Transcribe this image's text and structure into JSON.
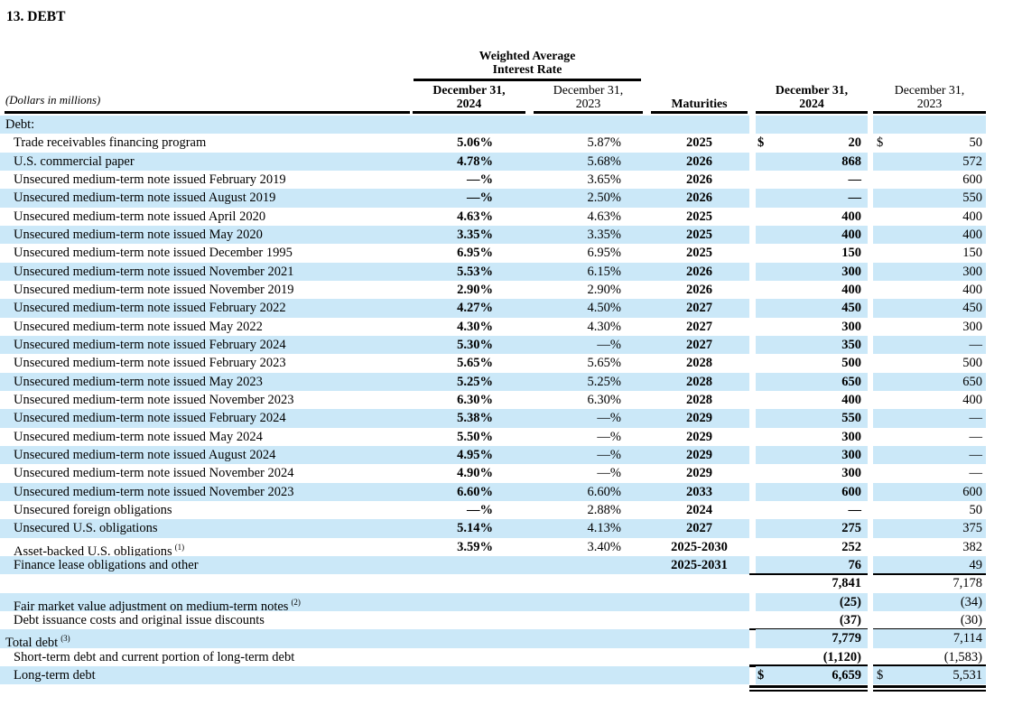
{
  "title": "13. DEBT",
  "colors": {
    "row_highlight": "#cbe8f8",
    "text": "#000000",
    "rule": "#000000"
  },
  "table": {
    "units_note": "(Dollars in millions)",
    "rate_group_header": {
      "line1": "Weighted Average",
      "line2": "Interest Rate"
    },
    "headers": {
      "rate_2024": {
        "line1": "December 31,",
        "line2": "2024"
      },
      "rate_2023": {
        "line1": "December 31,",
        "line2": "2023"
      },
      "maturities": "Maturities",
      "amount_2024": {
        "line1": "December 31,",
        "line2": "2024"
      },
      "amount_2023": {
        "line1": "December 31,",
        "line2": "2023"
      }
    },
    "rows": [
      {
        "label": "Debt:",
        "sup": "",
        "indent": false,
        "shaded": true,
        "rate_2024": "",
        "rate_2023": "",
        "maturities": "",
        "currency_2024": "",
        "amount_2024": "",
        "currency_2023": "",
        "amount_2023": "",
        "rule_below": "none"
      },
      {
        "label": "Trade receivables financing program",
        "sup": "",
        "indent": true,
        "shaded": false,
        "rate_2024": "5.06%",
        "rate_2023": "5.87%",
        "maturities": "2025",
        "currency_2024": "$",
        "amount_2024": "20",
        "currency_2023": "$",
        "amount_2023": "50",
        "rule_below": "none"
      },
      {
        "label": "U.S. commercial paper",
        "sup": "",
        "indent": true,
        "shaded": true,
        "rate_2024": "4.78%",
        "rate_2023": "5.68%",
        "maturities": "2026",
        "currency_2024": "",
        "amount_2024": "868",
        "currency_2023": "",
        "amount_2023": "572",
        "rule_below": "none"
      },
      {
        "label": "Unsecured medium-term note issued February 2019",
        "sup": "",
        "indent": true,
        "shaded": false,
        "rate_2024": "—%",
        "rate_2023": "3.65%",
        "maturities": "2026",
        "currency_2024": "",
        "amount_2024": "—",
        "currency_2023": "",
        "amount_2023": "600",
        "rule_below": "none"
      },
      {
        "label": "Unsecured medium-term note issued August 2019",
        "sup": "",
        "indent": true,
        "shaded": true,
        "rate_2024": "—%",
        "rate_2023": "2.50%",
        "maturities": "2026",
        "currency_2024": "",
        "amount_2024": "—",
        "currency_2023": "",
        "amount_2023": "550",
        "rule_below": "none"
      },
      {
        "label": "Unsecured medium-term note issued April 2020",
        "sup": "",
        "indent": true,
        "shaded": false,
        "rate_2024": "4.63%",
        "rate_2023": "4.63%",
        "maturities": "2025",
        "currency_2024": "",
        "amount_2024": "400",
        "currency_2023": "",
        "amount_2023": "400",
        "rule_below": "none"
      },
      {
        "label": "Unsecured medium-term note issued May 2020",
        "sup": "",
        "indent": true,
        "shaded": true,
        "rate_2024": "3.35%",
        "rate_2023": "3.35%",
        "maturities": "2025",
        "currency_2024": "",
        "amount_2024": "400",
        "currency_2023": "",
        "amount_2023": "400",
        "rule_below": "none"
      },
      {
        "label": "Unsecured medium-term note issued December 1995",
        "sup": "",
        "indent": true,
        "shaded": false,
        "rate_2024": "6.95%",
        "rate_2023": "6.95%",
        "maturities": "2025",
        "currency_2024": "",
        "amount_2024": "150",
        "currency_2023": "",
        "amount_2023": "150",
        "rule_below": "none"
      },
      {
        "label": "Unsecured medium-term note issued November 2021",
        "sup": "",
        "indent": true,
        "shaded": true,
        "rate_2024": "5.53%",
        "rate_2023": "6.15%",
        "maturities": "2026",
        "currency_2024": "",
        "amount_2024": "300",
        "currency_2023": "",
        "amount_2023": "300",
        "rule_below": "none"
      },
      {
        "label": "Unsecured medium-term note issued November 2019",
        "sup": "",
        "indent": true,
        "shaded": false,
        "rate_2024": "2.90%",
        "rate_2023": "2.90%",
        "maturities": "2026",
        "currency_2024": "",
        "amount_2024": "400",
        "currency_2023": "",
        "amount_2023": "400",
        "rule_below": "none"
      },
      {
        "label": "Unsecured medium-term note issued February 2022",
        "sup": "",
        "indent": true,
        "shaded": true,
        "rate_2024": "4.27%",
        "rate_2023": "4.50%",
        "maturities": "2027",
        "currency_2024": "",
        "amount_2024": "450",
        "currency_2023": "",
        "amount_2023": "450",
        "rule_below": "none"
      },
      {
        "label": "Unsecured medium-term note issued May 2022",
        "sup": "",
        "indent": true,
        "shaded": false,
        "rate_2024": "4.30%",
        "rate_2023": "4.30%",
        "maturities": "2027",
        "currency_2024": "",
        "amount_2024": "300",
        "currency_2023": "",
        "amount_2023": "300",
        "rule_below": "none"
      },
      {
        "label": "Unsecured medium-term note issued February 2024",
        "sup": "",
        "indent": true,
        "shaded": true,
        "rate_2024": "5.30%",
        "rate_2023": "—%",
        "maturities": "2027",
        "currency_2024": "",
        "amount_2024": "350",
        "currency_2023": "",
        "amount_2023": "—",
        "rule_below": "none"
      },
      {
        "label": "Unsecured medium-term note issued February 2023",
        "sup": "",
        "indent": true,
        "shaded": false,
        "rate_2024": "5.65%",
        "rate_2023": "5.65%",
        "maturities": "2028",
        "currency_2024": "",
        "amount_2024": "500",
        "currency_2023": "",
        "amount_2023": "500",
        "rule_below": "none"
      },
      {
        "label": "Unsecured medium-term note issued May 2023",
        "sup": "",
        "indent": true,
        "shaded": true,
        "rate_2024": "5.25%",
        "rate_2023": "5.25%",
        "maturities": "2028",
        "currency_2024": "",
        "amount_2024": "650",
        "currency_2023": "",
        "amount_2023": "650",
        "rule_below": "none"
      },
      {
        "label": "Unsecured medium-term note issued November 2023",
        "sup": "",
        "indent": true,
        "shaded": false,
        "rate_2024": "6.30%",
        "rate_2023": "6.30%",
        "maturities": "2028",
        "currency_2024": "",
        "amount_2024": "400",
        "currency_2023": "",
        "amount_2023": "400",
        "rule_below": "none"
      },
      {
        "label": "Unsecured medium-term note issued February 2024",
        "sup": "",
        "indent": true,
        "shaded": true,
        "rate_2024": "5.38%",
        "rate_2023": "—%",
        "maturities": "2029",
        "currency_2024": "",
        "amount_2024": "550",
        "currency_2023": "",
        "amount_2023": "—",
        "rule_below": "none"
      },
      {
        "label": "Unsecured medium-term note issued May 2024",
        "sup": "",
        "indent": true,
        "shaded": false,
        "rate_2024": "5.50%",
        "rate_2023": "—%",
        "maturities": "2029",
        "currency_2024": "",
        "amount_2024": "300",
        "currency_2023": "",
        "amount_2023": "—",
        "rule_below": "none"
      },
      {
        "label": "Unsecured medium-term note issued August 2024",
        "sup": "",
        "indent": true,
        "shaded": true,
        "rate_2024": "4.95%",
        "rate_2023": "—%",
        "maturities": "2029",
        "currency_2024": "",
        "amount_2024": "300",
        "currency_2023": "",
        "amount_2023": "—",
        "rule_below": "none"
      },
      {
        "label": "Unsecured medium-term note issued November 2024",
        "sup": "",
        "indent": true,
        "shaded": false,
        "rate_2024": "4.90%",
        "rate_2023": "—%",
        "maturities": "2029",
        "currency_2024": "",
        "amount_2024": "300",
        "currency_2023": "",
        "amount_2023": "—",
        "rule_below": "none"
      },
      {
        "label": "Unsecured medium-term note issued November 2023",
        "sup": "",
        "indent": true,
        "shaded": true,
        "rate_2024": "6.60%",
        "rate_2023": "6.60%",
        "maturities": "2033",
        "currency_2024": "",
        "amount_2024": "600",
        "currency_2023": "",
        "amount_2023": "600",
        "rule_below": "none"
      },
      {
        "label": "Unsecured foreign obligations",
        "sup": "",
        "indent": true,
        "shaded": false,
        "rate_2024": "—%",
        "rate_2023": "2.88%",
        "maturities": "2024",
        "currency_2024": "",
        "amount_2024": "—",
        "currency_2023": "",
        "amount_2023": "50",
        "rule_below": "none"
      },
      {
        "label": "Unsecured U.S. obligations",
        "sup": "",
        "indent": true,
        "shaded": true,
        "rate_2024": "5.14%",
        "rate_2023": "4.13%",
        "maturities": "2027",
        "currency_2024": "",
        "amount_2024": "275",
        "currency_2023": "",
        "amount_2023": "375",
        "rule_below": "none"
      },
      {
        "label": "Asset-backed U.S. obligations",
        "sup": "(1)",
        "indent": true,
        "shaded": false,
        "rate_2024": "3.59%",
        "rate_2023": "3.40%",
        "maturities": "2025-2030",
        "currency_2024": "",
        "amount_2024": "252",
        "currency_2023": "",
        "amount_2023": "382",
        "rule_below": "none"
      },
      {
        "label": "Finance lease obligations and other",
        "sup": "",
        "indent": true,
        "shaded": true,
        "rate_2024": "",
        "rate_2023": "",
        "maturities": "2025-2031",
        "currency_2024": "",
        "amount_2024": "76",
        "currency_2023": "",
        "amount_2023": "49",
        "rule_below": "single"
      },
      {
        "label": "",
        "sup": "",
        "indent": true,
        "shaded": false,
        "rate_2024": "",
        "rate_2023": "",
        "maturities": "",
        "currency_2024": "",
        "amount_2024": "7,841",
        "currency_2023": "",
        "amount_2023": "7,178",
        "rule_below": "none"
      },
      {
        "label": "Fair market value adjustment on medium-term notes",
        "sup": "(2)",
        "indent": true,
        "shaded": true,
        "rate_2024": "",
        "rate_2023": "",
        "maturities": "",
        "currency_2024": "",
        "amount_2024": "(25)",
        "currency_2023": "",
        "amount_2023": "(34)",
        "rule_below": "none"
      },
      {
        "label": "Debt issuance costs and original issue discounts",
        "sup": "",
        "indent": true,
        "shaded": false,
        "rate_2024": "",
        "rate_2023": "",
        "maturities": "",
        "currency_2024": "",
        "amount_2024": "(37)",
        "currency_2023": "",
        "amount_2023": "(30)",
        "rule_below": "single"
      },
      {
        "label": "Total debt",
        "sup": "(3)",
        "indent": false,
        "shaded": true,
        "rate_2024": "",
        "rate_2023": "",
        "maturities": "",
        "currency_2024": "",
        "amount_2024": "7,779",
        "currency_2023": "",
        "amount_2023": "7,114",
        "rule_below": "none"
      },
      {
        "label": "Short-term debt and current portion of long-term debt",
        "sup": "",
        "indent": true,
        "shaded": false,
        "rate_2024": "",
        "rate_2023": "",
        "maturities": "",
        "currency_2024": "",
        "amount_2024": "(1,120)",
        "currency_2023": "",
        "amount_2023": "(1,583)",
        "rule_below": "single"
      },
      {
        "label": "Long-term debt",
        "sup": "",
        "indent": true,
        "shaded": true,
        "rate_2024": "",
        "rate_2023": "",
        "maturities": "",
        "currency_2024": "$",
        "amount_2024": "6,659",
        "currency_2023": "$",
        "amount_2023": "5,531",
        "rule_below": "double"
      }
    ]
  }
}
